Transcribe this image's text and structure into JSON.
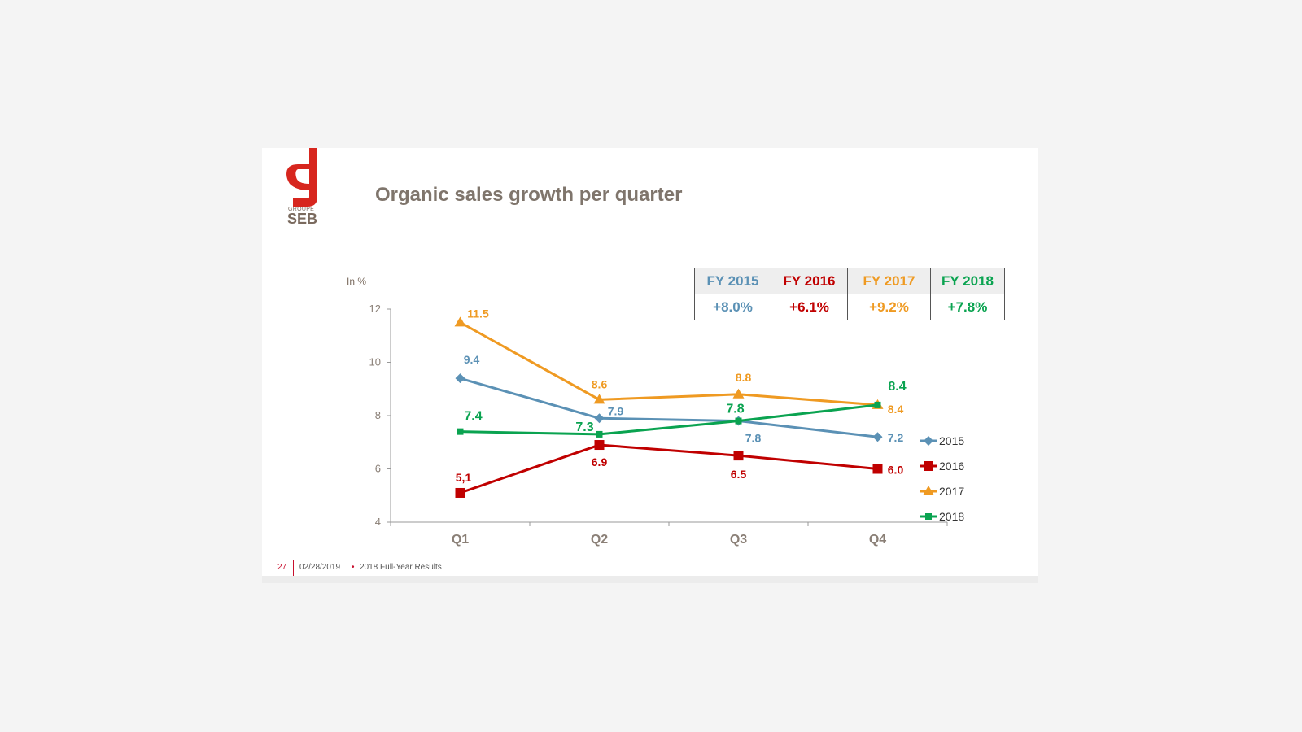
{
  "slide": {
    "title": "Organic sales growth per quarter",
    "logo": {
      "top_text": "GROUPE",
      "word": "SEB",
      "color": "#d7261e"
    },
    "footer": {
      "page": "27",
      "date": "02/28/2019",
      "separator": "•",
      "doc": "2018 Full-Year Results"
    }
  },
  "fy_table": {
    "headers": [
      {
        "label": "FY 2015",
        "color": "#5b91b5"
      },
      {
        "label": "FY 2016",
        "color": "#c00000"
      },
      {
        "label": "FY 2017",
        "color": "#ef9a22"
      },
      {
        "label": "FY 2018",
        "color": "#0aa350"
      }
    ],
    "values": [
      "+8.0%",
      "+6.1%",
      "+9.2%",
      "+7.8%"
    ]
  },
  "chart_data": {
    "type": "line",
    "title": "",
    "ylabel": "In %",
    "xlabel": "",
    "categories": [
      "Q1",
      "Q2",
      "Q3",
      "Q4"
    ],
    "ylim": [
      4,
      12
    ],
    "yticks": [
      4,
      6,
      8,
      10,
      12
    ],
    "grid": false,
    "legend_position": "right",
    "series": [
      {
        "name": "2015",
        "color": "#5b91b5",
        "marker": "diamond",
        "values": [
          9.4,
          7.9,
          7.8,
          7.2
        ],
        "labels": [
          "9.4",
          "7.9",
          "7.8",
          "7.2"
        ]
      },
      {
        "name": "2016",
        "color": "#c00000",
        "marker": "square",
        "values": [
          5.1,
          6.9,
          6.5,
          6.0
        ],
        "labels": [
          "5,1",
          "6.9",
          "6.5",
          "6.0"
        ]
      },
      {
        "name": "2017",
        "color": "#ef9a22",
        "marker": "triangle",
        "values": [
          11.5,
          8.6,
          8.8,
          8.4
        ],
        "labels": [
          "11.5",
          "8.6",
          "8.8",
          "8.4"
        ]
      },
      {
        "name": "2018",
        "color": "#0aa350",
        "marker": "small-square",
        "values": [
          7.4,
          7.3,
          7.8,
          8.4
        ],
        "labels": [
          "7.4",
          "7.3",
          "7.8",
          "8.4"
        ]
      }
    ]
  }
}
